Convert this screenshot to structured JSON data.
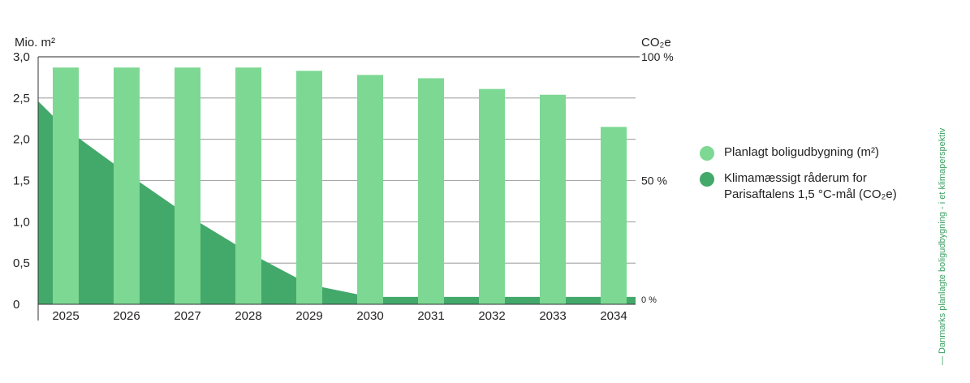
{
  "chart_data": {
    "type": "bar",
    "categories": [
      "2025",
      "2026",
      "2027",
      "2028",
      "2029",
      "2030",
      "2031",
      "2032",
      "2033",
      "2034"
    ],
    "series": [
      {
        "name": "Planlagt boligudbygning (m²)",
        "type": "bar",
        "axis": "left",
        "values": [
          2.87,
          2.87,
          2.87,
          2.87,
          2.83,
          2.78,
          2.74,
          2.61,
          2.54,
          2.15
        ],
        "color": "#7dd893"
      },
      {
        "name": "Klimamæssigt råderum for Parisaftalens 1,5 °C-mål  (CO₂e)",
        "type": "area",
        "axis": "right",
        "x": [
          2024.55,
          2025,
          2026,
          2027,
          2028,
          2029,
          2030,
          2031,
          2032,
          2033,
          2034,
          2034.55
        ],
        "values": [
          82,
          71,
          53,
          36,
          21,
          8,
          3,
          3,
          3,
          3,
          3,
          3
        ],
        "color": "#43a96a"
      }
    ],
    "y_left": {
      "label": "Mio. m²",
      "ylim": [
        0,
        3
      ],
      "ticks": [
        0,
        0.5,
        1,
        1.5,
        2,
        2.5,
        3
      ],
      "tick_labels": [
        "0",
        "0,5",
        "1,0",
        "1,5",
        "2,0",
        "2,5",
        "3,0"
      ]
    },
    "y_right": {
      "label": "CO₂e",
      "ylim": [
        0,
        100
      ],
      "tick_labels": [
        "0 %",
        "50 %",
        "100 %"
      ]
    },
    "grid": true,
    "legend_position": "right"
  },
  "legend": [
    {
      "label": "Planlagt boligudbygning (m²)",
      "color": "#7dd893"
    },
    {
      "label_lines": [
        "Klimamæssigt råderum for",
        "Parisaftalens 1,5 °C-mål  (CO₂e)"
      ],
      "color": "#43a96a"
    }
  ],
  "side_caption": "— Danmarks planlagte boligudbygning - i et klimaperspektiv"
}
